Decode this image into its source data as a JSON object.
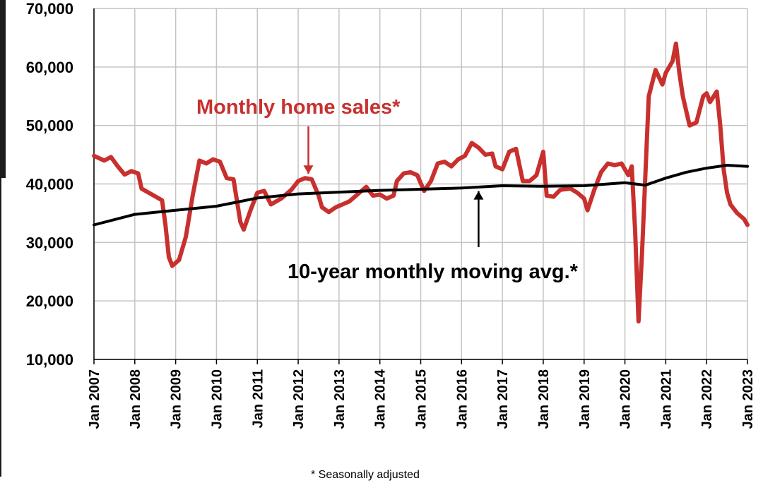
{
  "chart_data": {
    "type": "line",
    "x_start": "Jan 2007",
    "x_end": "Jan 2023",
    "ylim": [
      10000,
      70000
    ],
    "y_ticks": [
      "10,000",
      "20,000",
      "30,000",
      "40,000",
      "50,000",
      "60,000",
      "70,000"
    ],
    "x_ticks": [
      "Jan 2007",
      "Jan 2008",
      "Jan 2009",
      "Jan 2010",
      "Jan 2011",
      "Jan 2012",
      "Jan 2013",
      "Jan 2014",
      "Jan 2015",
      "Jan 2016",
      "Jan 2017",
      "Jan 2018",
      "Jan 2019",
      "Jan 2020",
      "Jan 2021",
      "Jan 2022",
      "Jan 2023"
    ],
    "grid": true,
    "series": [
      {
        "name": "Monthly home sales*",
        "color": "#c8302e",
        "points": [
          [
            "Jan 2007",
            44800
          ],
          [
            "Apr 2007",
            44000
          ],
          [
            "Jun 2007",
            44600
          ],
          [
            "Aug 2007",
            43000
          ],
          [
            "Oct 2007",
            41600
          ],
          [
            "Dec 2007",
            42200
          ],
          [
            "Feb 2008",
            41800
          ],
          [
            "Mar 2008",
            39200
          ],
          [
            "Jun 2008",
            38200
          ],
          [
            "Sep 2008",
            37200
          ],
          [
            "Oct 2008",
            33000
          ],
          [
            "Nov 2008",
            27500
          ],
          [
            "Dec 2008",
            26000
          ],
          [
            "Feb 2009",
            27000
          ],
          [
            "Apr 2009",
            31000
          ],
          [
            "Jun 2009",
            38000
          ],
          [
            "Aug 2009",
            44000
          ],
          [
            "Oct 2009",
            43500
          ],
          [
            "Dec 2009",
            44200
          ],
          [
            "Feb 2010",
            43800
          ],
          [
            "Apr 2010",
            41000
          ],
          [
            "Jun 2010",
            40800
          ],
          [
            "Aug 2010",
            33500
          ],
          [
            "Sep 2010",
            32200
          ],
          [
            "Nov 2010",
            35500
          ],
          [
            "Jan 2011",
            38500
          ],
          [
            "Mar 2011",
            38800
          ],
          [
            "May 2011",
            36500
          ],
          [
            "Aug 2011",
            37500
          ],
          [
            "Nov 2011",
            39000
          ],
          [
            "Jan 2012",
            40500
          ],
          [
            "Mar 2012",
            41000
          ],
          [
            "May 2012",
            40800
          ],
          [
            "Jul 2012",
            38000
          ],
          [
            "Aug 2012",
            36000
          ],
          [
            "Oct 2012",
            35200
          ],
          [
            "Dec 2012",
            36000
          ],
          [
            "Feb 2013",
            36500
          ],
          [
            "Apr 2013",
            37000
          ],
          [
            "Jul 2013",
            38500
          ],
          [
            "Sep 2013",
            39500
          ],
          [
            "Nov 2013",
            38000
          ],
          [
            "Jan 2014",
            38200
          ],
          [
            "Mar 2014",
            37500
          ],
          [
            "May 2014",
            38000
          ],
          [
            "Jun 2014",
            40500
          ],
          [
            "Aug 2014",
            41800
          ],
          [
            "Oct 2014",
            42000
          ],
          [
            "Dec 2014",
            41500
          ],
          [
            "Feb 2015",
            38800
          ],
          [
            "Apr 2015",
            40500
          ],
          [
            "Jun 2015",
            43500
          ],
          [
            "Aug 2015",
            43800
          ],
          [
            "Oct 2015",
            43000
          ],
          [
            "Dec 2015",
            44200
          ],
          [
            "Feb 2016",
            44800
          ],
          [
            "Apr 2016",
            47000
          ],
          [
            "Jun 2016",
            46200
          ],
          [
            "Aug 2016",
            45000
          ],
          [
            "Oct 2016",
            45200
          ],
          [
            "Nov 2016",
            43000
          ],
          [
            "Jan 2017",
            42500
          ],
          [
            "Mar 2017",
            45500
          ],
          [
            "May 2017",
            46000
          ],
          [
            "Jul 2017",
            40500
          ],
          [
            "Sep 2017",
            40500
          ],
          [
            "Nov 2017",
            41500
          ],
          [
            "Jan 2018",
            45500
          ],
          [
            "Feb 2018",
            38000
          ],
          [
            "Apr 2018",
            37800
          ],
          [
            "Jun 2018",
            39000
          ],
          [
            "Sep 2018",
            39200
          ],
          [
            "Nov 2018",
            38500
          ],
          [
            "Jan 2019",
            37500
          ],
          [
            "Feb 2019",
            35500
          ],
          [
            "Apr 2019",
            39000
          ],
          [
            "Jun 2019",
            42000
          ],
          [
            "Aug 2019",
            43500
          ],
          [
            "Oct 2019",
            43200
          ],
          [
            "Dec 2019",
            43500
          ],
          [
            "Feb 2020",
            41500
          ],
          [
            "Mar 2020",
            43000
          ],
          [
            "Apr 2020",
            32000
          ],
          [
            "May 2020",
            16500
          ],
          [
            "Jun 2020",
            28000
          ],
          [
            "Aug 2020",
            55000
          ],
          [
            "Oct 2020",
            59500
          ],
          [
            "Dec 2020",
            57000
          ],
          [
            "Jan 2021",
            59000
          ],
          [
            "Mar 2021",
            61000
          ],
          [
            "Apr 2021",
            64000
          ],
          [
            "May 2021",
            59000
          ],
          [
            "Jun 2021",
            55000
          ],
          [
            "Aug 2021",
            50000
          ],
          [
            "Oct 2021",
            50500
          ],
          [
            "Dec 2021",
            55000
          ],
          [
            "Jan 2022",
            55500
          ],
          [
            "Feb 2022",
            54000
          ],
          [
            "Apr 2022",
            55800
          ],
          [
            "May 2022",
            50000
          ],
          [
            "Jun 2022",
            42500
          ],
          [
            "Jul 2022",
            38500
          ],
          [
            "Aug 2022",
            36500
          ],
          [
            "Oct 2022",
            35000
          ],
          [
            "Dec 2022",
            34000
          ],
          [
            "Jan 2023",
            33000
          ]
        ]
      },
      {
        "name": "10-year monthly moving avg.*",
        "color": "#000000",
        "points": [
          [
            "Jan 2007",
            33000
          ],
          [
            "Jan 2008",
            34800
          ],
          [
            "Jan 2009",
            35500
          ],
          [
            "Jan 2010",
            36200
          ],
          [
            "Jan 2011",
            37600
          ],
          [
            "Jan 2012",
            38300
          ],
          [
            "Jan 2013",
            38600
          ],
          [
            "Jan 2014",
            38900
          ],
          [
            "Jan 2015",
            39100
          ],
          [
            "Jan 2016",
            39300
          ],
          [
            "Jan 2017",
            39700
          ],
          [
            "Jan 2018",
            39600
          ],
          [
            "Jan 2019",
            39700
          ],
          [
            "Jan 2020",
            40200
          ],
          [
            "Jul 2020",
            39800
          ],
          [
            "Jan 2021",
            41000
          ],
          [
            "Jul 2021",
            42000
          ],
          [
            "Jan 2022",
            42700
          ],
          [
            "Jul 2022",
            43200
          ],
          [
            "Jan 2023",
            43000
          ]
        ]
      }
    ],
    "annotations": [
      {
        "text": "Monthly home sales*",
        "color": "#c8302e",
        "arrow_to": [
          "Apr 2012",
          41000
        ],
        "arrow_dir": "down"
      },
      {
        "text": "10-year monthly moving avg.*",
        "color": "#000000",
        "arrow_to": [
          "Jun 2016",
          39500
        ],
        "arrow_dir": "up"
      }
    ]
  },
  "footnote": "* Seasonally adjusted"
}
